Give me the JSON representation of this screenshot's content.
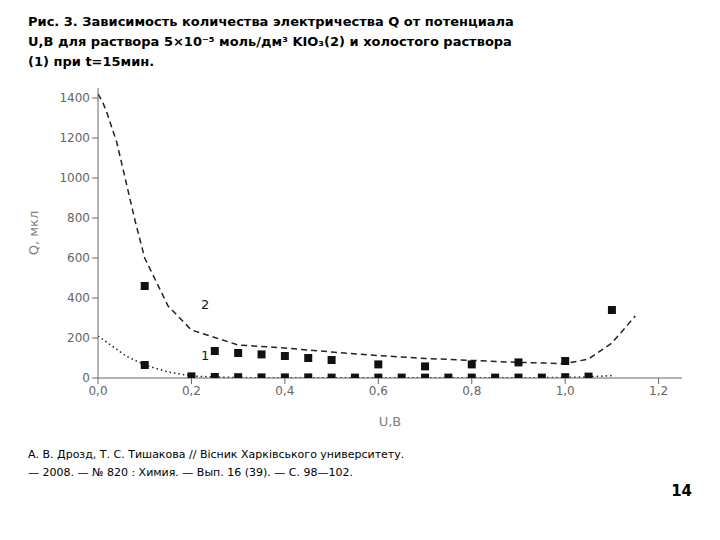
{
  "chart_data": {
    "type": "line",
    "title": [
      "Рис. 3. Зависимость количества электричества Q от потенциала",
      "U,В для раствора 5×10⁻⁵ моль/дм³ KIO₃(2) и холостого раствора",
      "(1) при t=15мин."
    ],
    "x_label": "U,В",
    "y_label": "Q, мкл",
    "xlim": [
      0.0,
      1.25
    ],
    "ylim": [
      0,
      1450
    ],
    "xticks": [
      {
        "value": 0.0,
        "label": "0,0"
      },
      {
        "value": 0.2,
        "label": "0,2"
      },
      {
        "value": 0.4,
        "label": "0,4"
      },
      {
        "value": 0.6,
        "label": "0,6"
      },
      {
        "value": 0.8,
        "label": "0,8"
      },
      {
        "value": 1.0,
        "label": "1,0"
      },
      {
        "value": 1.2,
        "label": "1,2"
      }
    ],
    "yticks": [
      0,
      200,
      400,
      600,
      800,
      1000,
      1200,
      1400
    ],
    "grid": false,
    "series": [
      {
        "type": "line",
        "line_style": "dashed",
        "color": "#222222",
        "x": [
          0.0,
          0.01,
          0.02,
          0.04,
          0.06,
          0.08,
          0.1,
          0.15,
          0.2,
          0.3,
          0.4,
          0.5,
          0.6,
          0.7,
          0.8,
          0.9,
          1.0,
          1.05,
          1.1,
          1.15
        ],
        "values": [
          1420,
          1380,
          1320,
          1180,
          980,
          780,
          600,
          360,
          240,
          165,
          150,
          130,
          112,
          98,
          88,
          78,
          72,
          95,
          175,
          310
        ]
      },
      {
        "type": "line",
        "line_style": "dotted",
        "color": "#222222",
        "x": [
          0.0,
          0.03,
          0.06,
          0.1,
          0.15,
          0.2,
          0.25,
          0.3,
          0.4,
          0.5,
          0.6,
          0.7,
          0.8,
          0.9,
          1.0,
          1.05,
          1.1
        ],
        "values": [
          210,
          160,
          110,
          65,
          30,
          10,
          5,
          2,
          1,
          1,
          1,
          1,
          1,
          1,
          3,
          6,
          12
        ]
      },
      {
        "type": "scatter",
        "marker": "square",
        "color": "#111111",
        "x": [
          0.1,
          0.25,
          0.3,
          0.35,
          0.4,
          0.45,
          0.5,
          0.6,
          0.7,
          0.8,
          0.9,
          1.0,
          1.1
        ],
        "values": [
          460,
          135,
          125,
          118,
          110,
          100,
          90,
          68,
          58,
          68,
          78,
          85,
          340
        ]
      },
      {
        "type": "scatter",
        "marker": "square",
        "color": "#111111",
        "x": [
          0.1,
          0.2,
          0.25,
          0.3,
          0.35,
          0.4,
          0.45,
          0.5,
          0.55,
          0.6,
          0.65,
          0.7,
          0.75,
          0.8,
          0.85,
          0.9,
          0.95,
          1.0,
          1.05
        ],
        "values": [
          65,
          8,
          5,
          4,
          3,
          3,
          3,
          2,
          2,
          2,
          2,
          2,
          2,
          2,
          2,
          2,
          2,
          4,
          7
        ]
      }
    ],
    "annotations": [
      {
        "text": "2",
        "x": 0.21,
        "y": 370
      },
      {
        "text": "1",
        "x": 0.21,
        "y": 115
      }
    ],
    "footer": [
      "А. В. Дрозд, Т. С. Тишакова // Вісник Харківського университету.",
      "— 2008. — № 820 : Химия. — Вып. 16 (39). — С. 98—102."
    ],
    "page_number": "14"
  }
}
